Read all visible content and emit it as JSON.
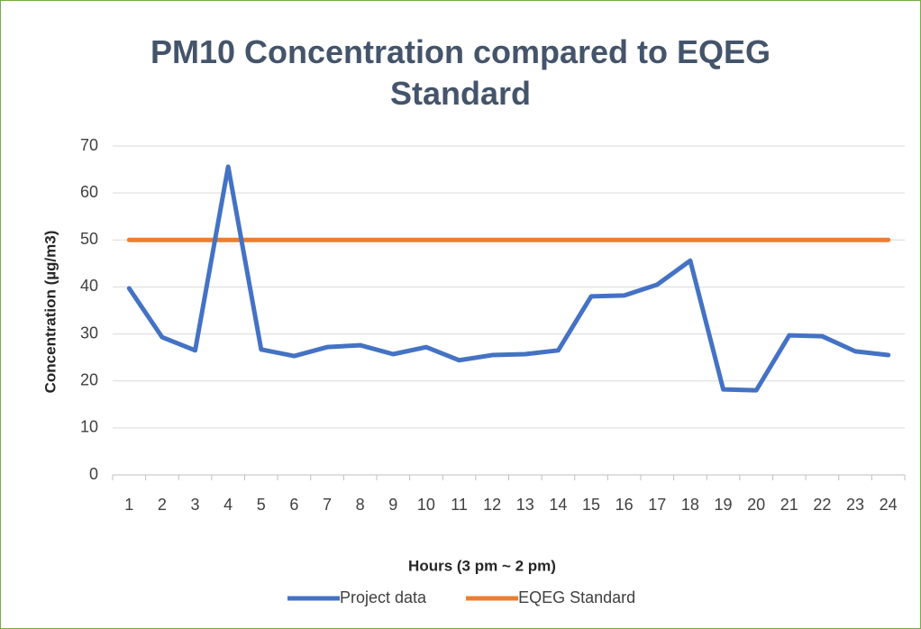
{
  "chart_data": {
    "type": "line",
    "title": "PM10 Concentration compared to EQEG Standard",
    "x_label": "Hours (3 pm ~ 2 pm)",
    "y_label": "Concentration (µg/m3)",
    "categories": [
      "1",
      "2",
      "3",
      "4",
      "5",
      "6",
      "7",
      "8",
      "9",
      "10",
      "11",
      "12",
      "13",
      "14",
      "15",
      "16",
      "17",
      "18",
      "19",
      "20",
      "21",
      "22",
      "23",
      "24"
    ],
    "series": [
      {
        "name": "Project data",
        "color": "#4472c4",
        "values": [
          39.7,
          29.3,
          26.5,
          65.6,
          26.7,
          25.3,
          27.2,
          27.6,
          25.7,
          27.2,
          24.4,
          25.5,
          25.7,
          26.5,
          38.0,
          38.2,
          40.5,
          45.6,
          18.2,
          18.0,
          29.7,
          29.5,
          26.3,
          25.5
        ]
      },
      {
        "name": "EQEG Standard",
        "color": "#ed7d31",
        "values": [
          50,
          50,
          50,
          50,
          50,
          50,
          50,
          50,
          50,
          50,
          50,
          50,
          50,
          50,
          50,
          50,
          50,
          50,
          50,
          50,
          50,
          50,
          50,
          50
        ]
      }
    ],
    "ylim": [
      0,
      70
    ],
    "yticks": [
      0,
      10,
      20,
      30,
      40,
      50,
      60,
      70
    ],
    "grid": true,
    "legend": "bottom"
  }
}
